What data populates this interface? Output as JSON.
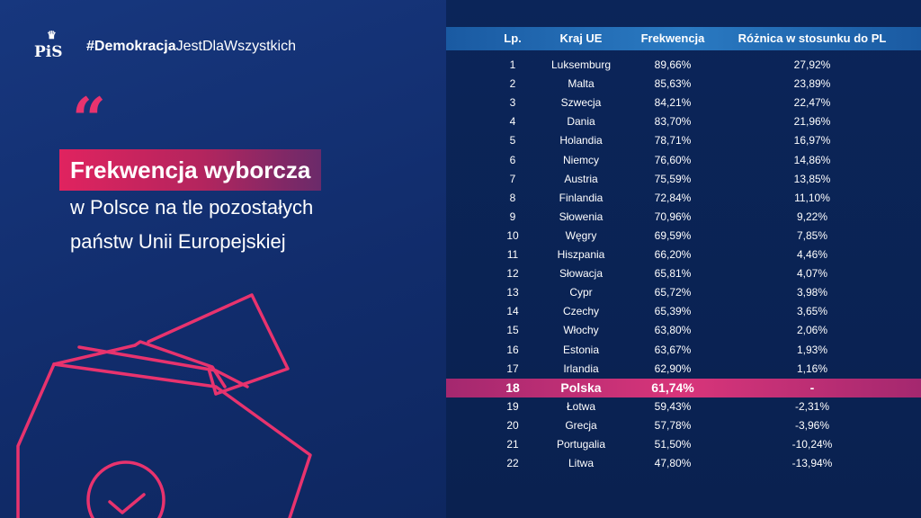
{
  "brand": {
    "logo_text": "PiS",
    "hashtag_bold": "#Demokracja",
    "hashtag_rest": "JestDlaWszystkich"
  },
  "headline": {
    "quote_mark": "“",
    "title": "Frekwencja wyborcza",
    "line1": "w Polsce na tle pozostałych",
    "line2": "państw Unii Europejskiej"
  },
  "table": {
    "headers": {
      "lp": "Lp.",
      "kraj": "Kraj UE",
      "frekwencja": "Frekwencja",
      "roznica": "Różnica w stosunku do PL"
    },
    "rows": [
      {
        "lp": "1",
        "kraj": "Luksemburg",
        "frekwencja": "89,66%",
        "roznica": "27,92%"
      },
      {
        "lp": "2",
        "kraj": "Malta",
        "frekwencja": "85,63%",
        "roznica": "23,89%"
      },
      {
        "lp": "3",
        "kraj": "Szwecja",
        "frekwencja": "84,21%",
        "roznica": "22,47%"
      },
      {
        "lp": "4",
        "kraj": "Dania",
        "frekwencja": "83,70%",
        "roznica": "21,96%"
      },
      {
        "lp": "5",
        "kraj": "Holandia",
        "frekwencja": "78,71%",
        "roznica": "16,97%"
      },
      {
        "lp": "6",
        "kraj": "Niemcy",
        "frekwencja": "76,60%",
        "roznica": "14,86%"
      },
      {
        "lp": "7",
        "kraj": "Austria",
        "frekwencja": "75,59%",
        "roznica": "13,85%"
      },
      {
        "lp": "8",
        "kraj": "Finlandia",
        "frekwencja": "72,84%",
        "roznica": "11,10%"
      },
      {
        "lp": "9",
        "kraj": "Słowenia",
        "frekwencja": "70,96%",
        "roznica": "9,22%"
      },
      {
        "lp": "10",
        "kraj": "Węgry",
        "frekwencja": "69,59%",
        "roznica": "7,85%"
      },
      {
        "lp": "11",
        "kraj": "Hiszpania",
        "frekwencja": "66,20%",
        "roznica": "4,46%"
      },
      {
        "lp": "12",
        "kraj": "Słowacja",
        "frekwencja": "65,81%",
        "roznica": "4,07%"
      },
      {
        "lp": "13",
        "kraj": "Cypr",
        "frekwencja": "65,72%",
        "roznica": "3,98%"
      },
      {
        "lp": "14",
        "kraj": "Czechy",
        "frekwencja": "65,39%",
        "roznica": "3,65%"
      },
      {
        "lp": "15",
        "kraj": "Włochy",
        "frekwencja": "63,80%",
        "roznica": "2,06%"
      },
      {
        "lp": "16",
        "kraj": "Estonia",
        "frekwencja": "63,67%",
        "roznica": "1,93%"
      },
      {
        "lp": "17",
        "kraj": "Irlandia",
        "frekwencja": "62,90%",
        "roznica": "1,16%"
      },
      {
        "lp": "18",
        "kraj": "Polska",
        "frekwencja": "61,74%",
        "roznica": "-"
      },
      {
        "lp": "19",
        "kraj": "Łotwa",
        "frekwencja": "59,43%",
        "roznica": "-2,31%"
      },
      {
        "lp": "20",
        "kraj": "Grecja",
        "frekwencja": "57,78%",
        "roznica": "-3,96%"
      },
      {
        "lp": "21",
        "kraj": "Portugalia",
        "frekwencja": "51,50%",
        "roznica": "-10,24%"
      },
      {
        "lp": "22",
        "kraj": "Litwa",
        "frekwencja": "47,80%",
        "roznica": "-13,94%"
      }
    ]
  },
  "colors": {
    "background": "#0f2a66",
    "accent": "#e0235f",
    "header_band": "#2a7ac2",
    "highlight_row": "#d8357a"
  },
  "icons": {
    "logo": "pis-crown-logo",
    "quote": "quote-mark-icon",
    "ballot": "ballot-box-icon"
  }
}
